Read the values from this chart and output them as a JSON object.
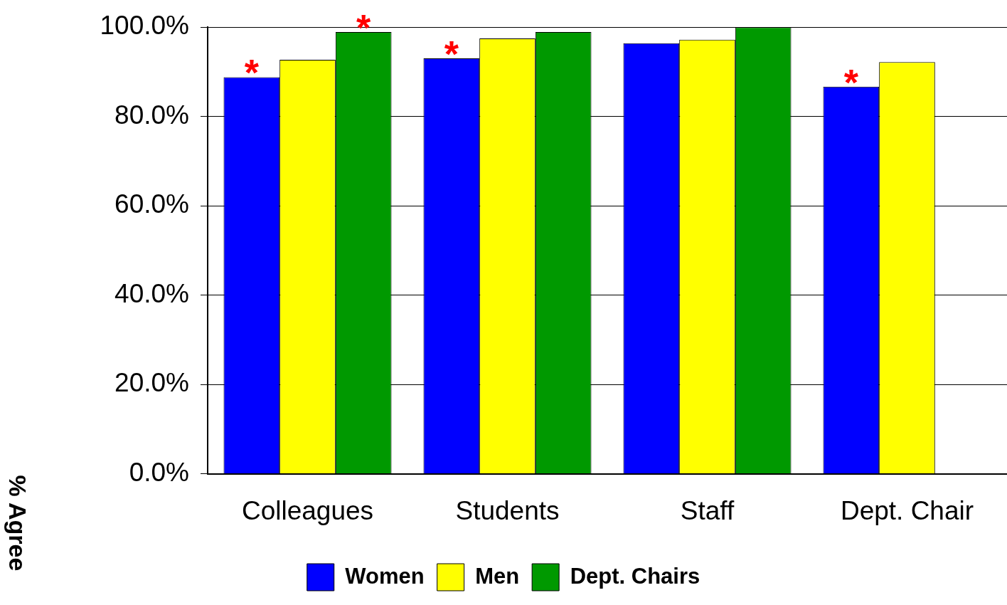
{
  "chart_data": {
    "type": "bar",
    "ylabel": "% Agree",
    "categories": [
      "Colleagues",
      "Students",
      "Staff",
      "Dept. Chair"
    ],
    "series": [
      {
        "name": "Women",
        "color": "#0000ff",
        "values": [
          88.8,
          93.0,
          96.4,
          86.7
        ]
      },
      {
        "name": "Men",
        "color": "#ffff00",
        "values": [
          92.7,
          97.5,
          97.2,
          92.2
        ]
      },
      {
        "name": "Dept. Chairs",
        "color": "#009900",
        "values": [
          98.9,
          98.9,
          100,
          null
        ]
      }
    ],
    "ylim": [
      0,
      100
    ],
    "yticks": [
      {
        "value": 0,
        "label": "0.0%"
      },
      {
        "value": 20,
        "label": "20.0%"
      },
      {
        "value": 40,
        "label": "40.0%"
      },
      {
        "value": 60,
        "label": "60.0%"
      },
      {
        "value": 80,
        "label": "80.0%"
      },
      {
        "value": 100,
        "label": "100.0%"
      }
    ],
    "grid": "y",
    "legend": "bottom",
    "annotations": [
      "*",
      "*",
      "*",
      "*"
    ]
  }
}
